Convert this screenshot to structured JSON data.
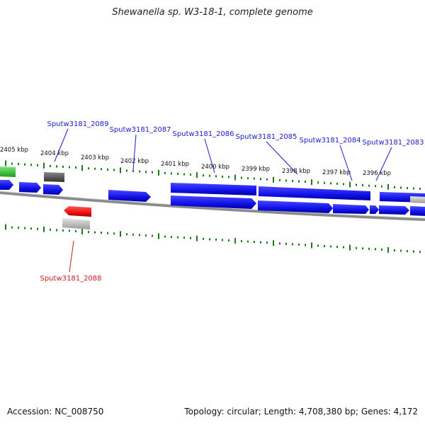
{
  "title": "Shewanella sp. W3-18-1, complete genome",
  "accession": "Accession: NC_008750",
  "topology": "Topology: circular; Length: 4,708,380 bp; Genes: 4,172",
  "colors": {
    "gene": "#1a1aff",
    "highlight": "#ff1a1a",
    "label_blue": "#1a1acc",
    "label_red": "#cc1a1a",
    "tick": "#1a7a1a",
    "rna": "#33cc33",
    "pseudo": "#555555",
    "backbone": "#999999"
  },
  "kbp_labels": [
    "2405 kbp",
    "2404 kbp",
    "2403 kbp",
    "2402 kbp",
    "2401 kbp",
    "2400 kbp",
    "2399 kbp",
    "2398 kbp",
    "2397 kbp",
    "2396 kbp"
  ],
  "gene_labels": [
    {
      "text": "Sputw3181_2089",
      "color": "blue"
    },
    {
      "text": "Sputw3181_2087",
      "color": "blue"
    },
    {
      "text": "Sputw3181_2086",
      "color": "blue"
    },
    {
      "text": "Sputw3181_2085",
      "color": "blue"
    },
    {
      "text": "Sputw3181_2084",
      "color": "blue"
    },
    {
      "text": "Sputw3181_2083",
      "color": "blue"
    },
    {
      "text": "Sputw3181_2088",
      "color": "red"
    }
  ]
}
